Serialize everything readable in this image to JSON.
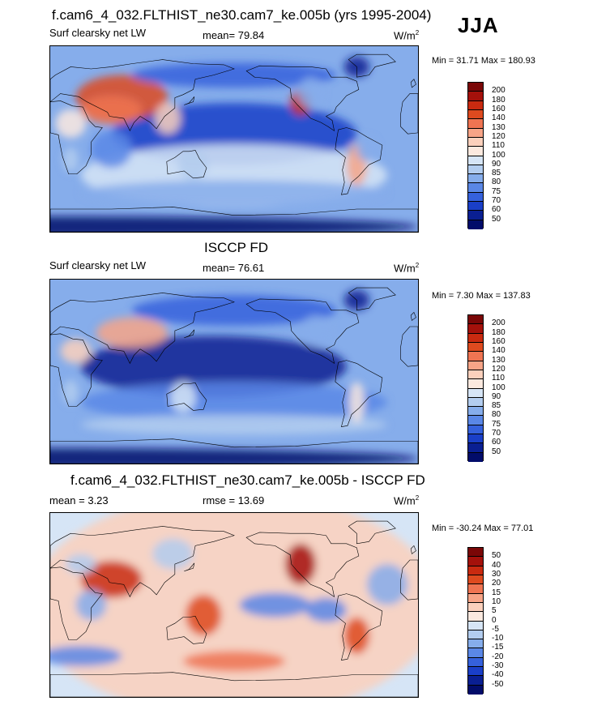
{
  "season": "JJA",
  "panels": [
    {
      "title": "f.cam6_4_032.FLTHIST_ne30.cam7_ke.005b (yrs 1995-2004)",
      "left_label": "Surf clearsky net LW",
      "stat_text": "mean=  79.84",
      "units": "W/m",
      "units_exp": "2",
      "minmax": "Min =  31.71 Max = 180.93",
      "colorbar_labels": [
        "200",
        "180",
        "160",
        "140",
        "130",
        "120",
        "110",
        "100",
        "90",
        "85",
        "80",
        "75",
        "70",
        "60",
        "50"
      ]
    },
    {
      "title": "ISCCP FD",
      "left_label": "Surf clearsky net LW",
      "stat_text": "mean=  76.61",
      "units": "W/m",
      "units_exp": "2",
      "minmax": "Min =   7.30 Max = 137.83",
      "colorbar_labels": [
        "200",
        "180",
        "160",
        "140",
        "130",
        "120",
        "110",
        "100",
        "90",
        "85",
        "80",
        "75",
        "70",
        "60",
        "50"
      ]
    },
    {
      "title": "f.cam6_4_032.FLTHIST_ne30.cam7_ke.005b - ISCCP FD",
      "left_label": "mean =   3.23",
      "stat_text": "rmse =  13.69",
      "units": "W/m",
      "units_exp": "2",
      "minmax": "Min = -30.24 Max =  77.01",
      "colorbar_labels": [
        "50",
        "40",
        "30",
        "20",
        "15",
        "10",
        "5",
        "0",
        "-5",
        "-10",
        "-15",
        "-20",
        "-30",
        "-40",
        "-50"
      ]
    }
  ],
  "colors": {
    "palette": [
      "#7a0707",
      "#a4110b",
      "#c92a10",
      "#de4a1f",
      "#ef7452",
      "#f7a487",
      "#fbd0bc",
      "#fbe9df",
      "#d6e5f6",
      "#b3cdef",
      "#86adeb",
      "#5a87e6",
      "#3561dc",
      "#1a3fc8",
      "#0a1f92",
      "#020c6a"
    ],
    "land_outline": "#000000"
  }
}
